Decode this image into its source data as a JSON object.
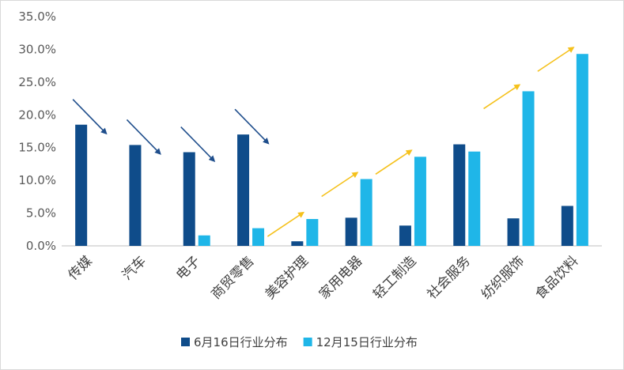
{
  "chart_data": {
    "type": "bar",
    "title": "",
    "xlabel": "",
    "ylabel": "",
    "ylim": [
      0,
      35
    ],
    "y_ticks": [
      0,
      5,
      10,
      15,
      20,
      25,
      30,
      35
    ],
    "y_tick_labels": [
      "0.0%",
      "5.0%",
      "10.0%",
      "15.0%",
      "20.0%",
      "25.0%",
      "30.0%",
      "35.0%"
    ],
    "grid": false,
    "legend_position": "bottom",
    "categories": [
      "传媒",
      "汽车",
      "电子",
      "商贸零售",
      "美容护理",
      "家用电器",
      "轻工制造",
      "社会服务",
      "纺织服饰",
      "食品饮料"
    ],
    "series": [
      {
        "name": "6月16日行业分布",
        "color": "#0f4c8a",
        "values": [
          18.5,
          15.4,
          14.3,
          17.0,
          0.7,
          4.3,
          3.1,
          15.5,
          4.2,
          6.1
        ]
      },
      {
        "name": "12月15日行业分布",
        "color": "#1fb6e8",
        "values": [
          0,
          0,
          1.6,
          2.7,
          4.1,
          10.2,
          13.6,
          14.4,
          23.6,
          29.3
        ]
      }
    ],
    "annotations": {
      "down_arrows": [
        "传媒",
        "汽车",
        "电子",
        "商贸零售"
      ],
      "up_arrows": [
        "美容护理",
        "家用电器",
        "轻工制造",
        "纺织服饰",
        "食品饮料"
      ],
      "down_color": "#1f4e8c",
      "up_color": "#f5c11b"
    }
  }
}
